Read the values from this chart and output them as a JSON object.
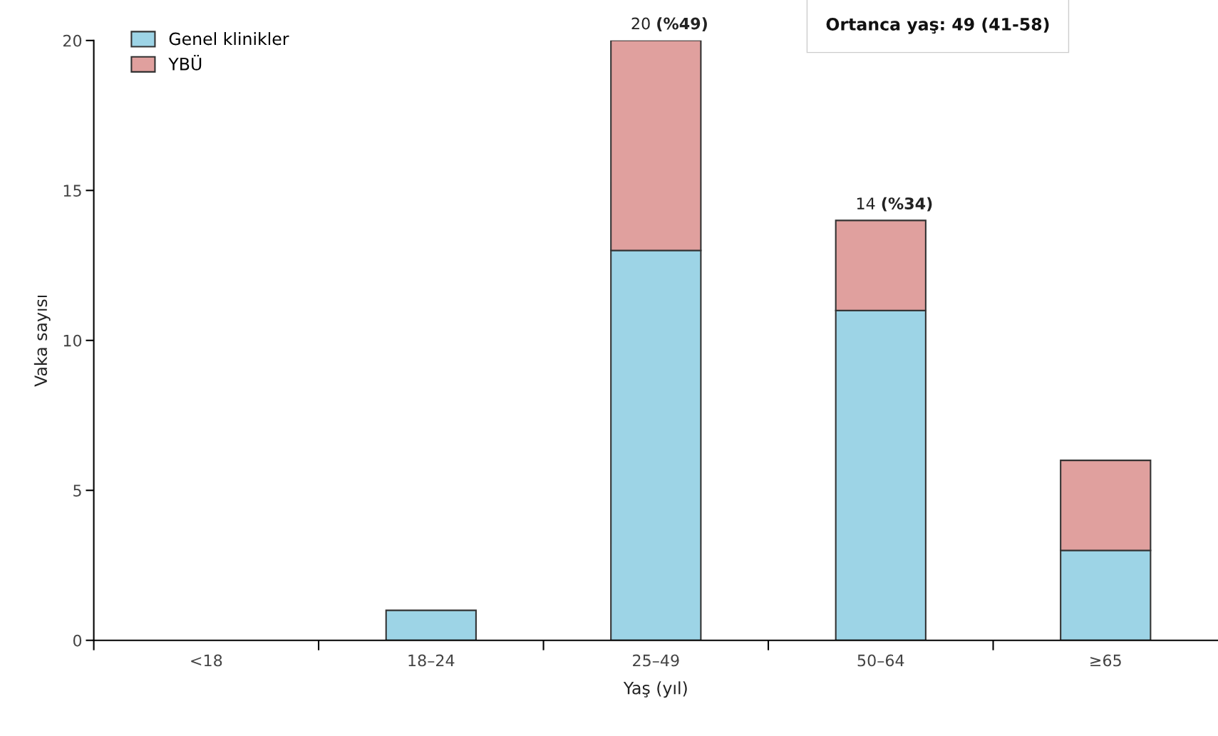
{
  "chart_data": {
    "type": "bar",
    "stacked": true,
    "xlabel": "Yaş (yıl)",
    "ylabel": "Vaka sayısı",
    "categories": [
      "<18",
      "18–24",
      "25–49",
      "50–64",
      "≥65"
    ],
    "series": [
      {
        "name": "Genel klinikler",
        "color": "#9dd4e6",
        "values": [
          0,
          1,
          13,
          11,
          3
        ]
      },
      {
        "name": "YBÜ",
        "color": "#e0a09e",
        "values": [
          0,
          0,
          7,
          3,
          3
        ]
      }
    ],
    "totals": [
      null,
      null,
      "20 (%49)",
      "14 (%34)",
      null
    ],
    "annotations": [
      "Ortanca yaş: 49 (41-58)"
    ],
    "ylim": [
      0,
      20
    ],
    "yticks": [
      0,
      5,
      10,
      15,
      20
    ],
    "grid": false,
    "legend": "top left"
  }
}
